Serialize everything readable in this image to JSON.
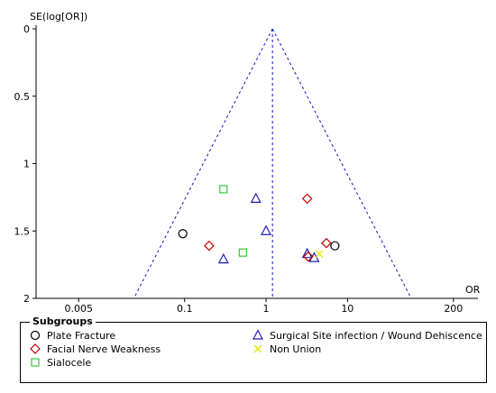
{
  "chart_data": {
    "type": "scatter",
    "subtype": "funnel-plot",
    "title": "",
    "xlabel": "OR",
    "ylabel": "SE(log[OR])",
    "x_scale": "log",
    "xlim": [
      0.0015,
      400
    ],
    "ylim": [
      0,
      2
    ],
    "y_reversed": true,
    "x_ticks": [
      0.005,
      0.1,
      1,
      10,
      200
    ],
    "x_tick_labels": [
      "0.005",
      "0.1",
      "1",
      "10",
      "200"
    ],
    "y_ticks": [
      0,
      0.5,
      1,
      1.5,
      2
    ],
    "y_tick_labels": [
      "0",
      "0.5",
      "1",
      "1.5",
      "2"
    ],
    "pooled_or": 1.2,
    "funnel_lines": "dashed-blue",
    "grid": false,
    "legend_title": "Subgroups",
    "legend_position": "bottom",
    "series": [
      {
        "name": "Plate Fracture",
        "marker": "circle",
        "color": "#000000",
        "points": [
          {
            "x": 0.095,
            "y": 1.52
          },
          {
            "x": 7.0,
            "y": 1.61
          }
        ]
      },
      {
        "name": "Surgical Site infection / Wound Dehiscence",
        "marker": "triangle",
        "color": "#1f1fb4",
        "points": [
          {
            "x": 0.3,
            "y": 1.71
          },
          {
            "x": 0.75,
            "y": 1.26
          },
          {
            "x": 1.0,
            "y": 1.5
          },
          {
            "x": 3.2,
            "y": 1.67
          },
          {
            "x": 3.9,
            "y": 1.7
          }
        ]
      },
      {
        "name": "Non Union",
        "marker": "x",
        "color": "#e6e600",
        "points": [
          {
            "x": 4.5,
            "y": 1.67
          }
        ]
      },
      {
        "name": "Facial Nerve Weakness",
        "marker": "diamond",
        "color": "#c00000",
        "points": [
          {
            "x": 0.2,
            "y": 1.61
          },
          {
            "x": 3.2,
            "y": 1.26
          },
          {
            "x": 3.3,
            "y": 1.69
          },
          {
            "x": 5.5,
            "y": 1.59
          }
        ]
      },
      {
        "name": "Sialocele",
        "marker": "square",
        "color": "#33cc33",
        "points": [
          {
            "x": 0.3,
            "y": 1.19
          },
          {
            "x": 0.52,
            "y": 1.66
          }
        ]
      }
    ]
  }
}
